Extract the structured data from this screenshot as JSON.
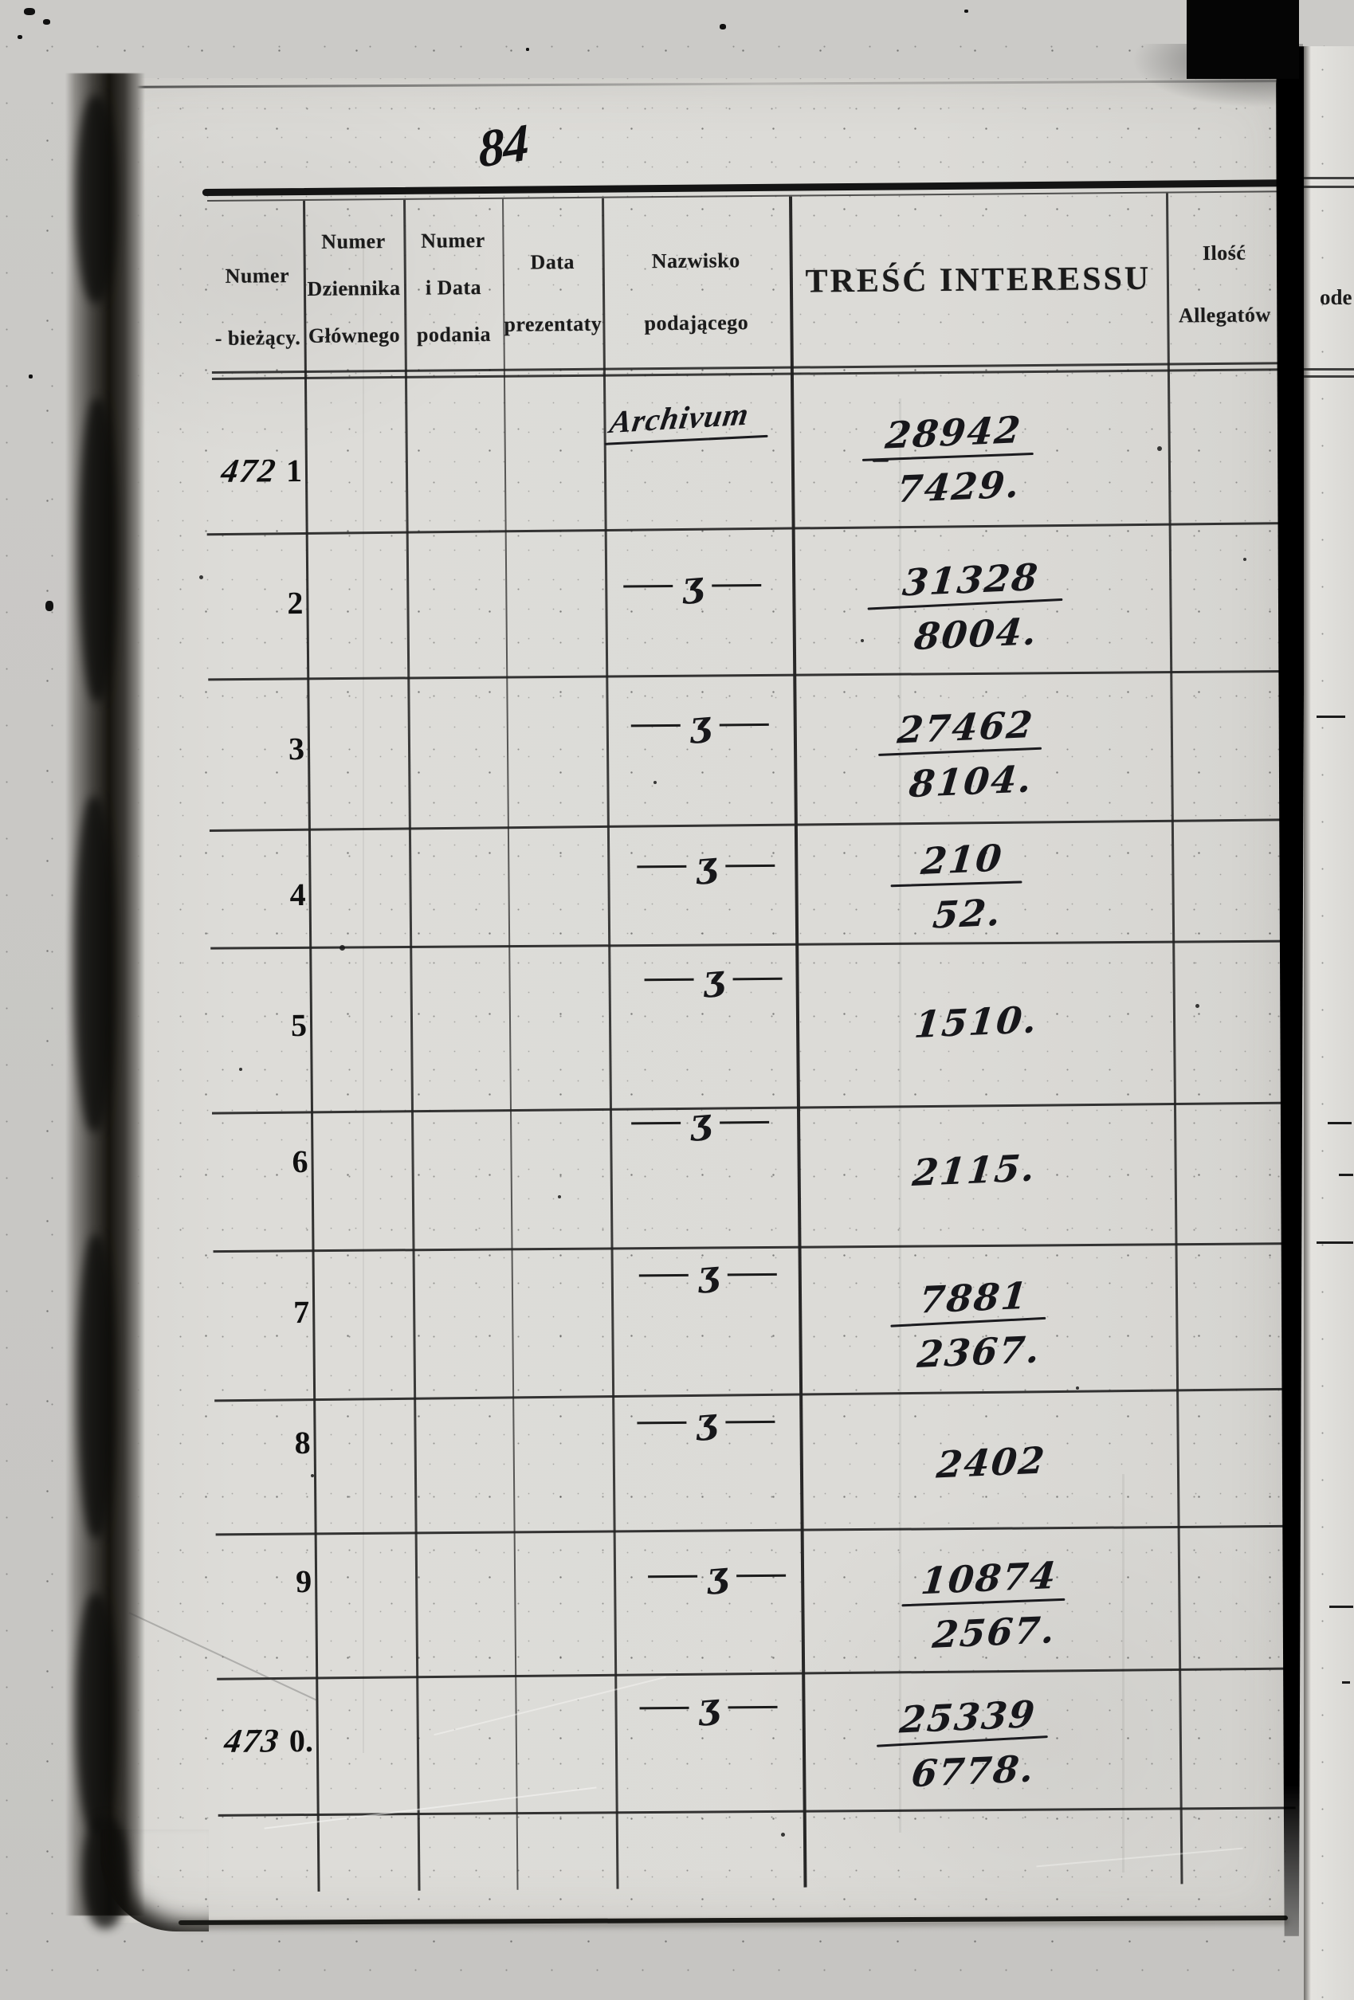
{
  "scan": {
    "handwritten_page_number": "84",
    "adjacent_page_partial_text": "ode"
  },
  "register_table": {
    "title": "TREŚĆ INTERESSU",
    "columns": [
      {
        "id": "numer-biezacy",
        "label_lines": [
          "Numer",
          "- bieżący."
        ]
      },
      {
        "id": "numer-dziennika-glownego",
        "label_lines": [
          "Numer",
          "Dziennika",
          "Głównego"
        ]
      },
      {
        "id": "numer-i-data-podania",
        "label_lines": [
          "Numer",
          "i Data",
          "podania"
        ]
      },
      {
        "id": "data-prezentaty",
        "label_lines": [
          "Data",
          "prezentaty"
        ]
      },
      {
        "id": "nazwisko-podajacego",
        "label_lines": [
          "Nazwisko",
          "podającego"
        ]
      },
      {
        "id": "tresc-interessu",
        "label_lines": [
          "TREŚĆ INTERESSU"
        ]
      },
      {
        "id": "ilosc-allegatow",
        "label_lines": [
          "Ilość",
          "Allegatów"
        ]
      }
    ],
    "ditto_symbol": "ʒ",
    "rows": [
      {
        "numer_biezacy_prefix": "472",
        "numer_biezacy": "1",
        "nazwisko_podajacego": "Archivum",
        "tresc_top": "28942",
        "tresc_bottom": "7429."
      },
      {
        "numer_biezacy": "2",
        "nazwisko_ditto": true,
        "tresc_top": "31328",
        "tresc_bottom": "8004."
      },
      {
        "numer_biezacy": "3",
        "nazwisko_ditto": true,
        "tresc_top": "27462",
        "tresc_bottom": "8104."
      },
      {
        "numer_biezacy": "4",
        "nazwisko_ditto": true,
        "tresc_top": "210",
        "tresc_bottom": "52."
      },
      {
        "numer_biezacy": "5",
        "nazwisko_ditto": true,
        "tresc_single": "1510."
      },
      {
        "numer_biezacy": "6",
        "nazwisko_ditto": true,
        "tresc_single": "2115."
      },
      {
        "numer_biezacy": "7",
        "nazwisko_ditto": true,
        "tresc_top": "7881",
        "tresc_bottom": "2367."
      },
      {
        "numer_biezacy": "8",
        "nazwisko_ditto": true,
        "tresc_single": "2402"
      },
      {
        "numer_biezacy": "9",
        "nazwisko_ditto": true,
        "tresc_top": "10874",
        "tresc_bottom": "2567."
      },
      {
        "numer_biezacy_prefix": "473",
        "numer_biezacy": "0.",
        "nazwisko_ditto": true,
        "tresc_top": "25339",
        "tresc_bottom": "6778."
      }
    ]
  }
}
